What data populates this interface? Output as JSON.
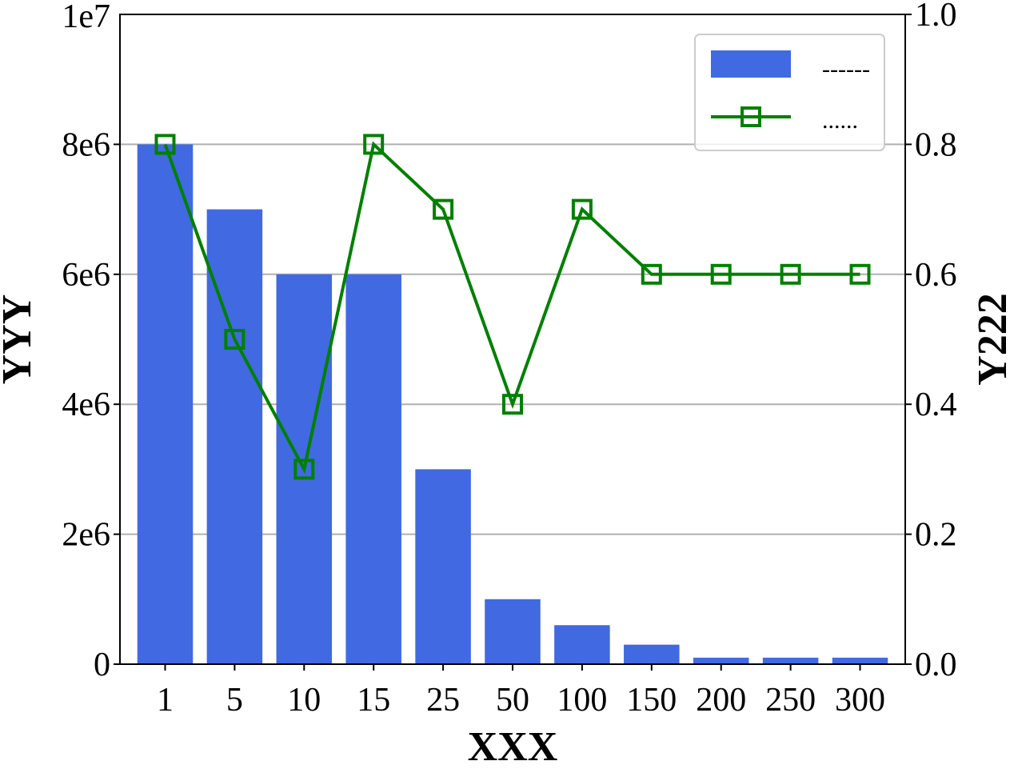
{
  "chart_data": {
    "type": "bar",
    "categories": [
      "1",
      "5",
      "10",
      "15",
      "25",
      "50",
      "100",
      "150",
      "200",
      "250",
      "300"
    ],
    "xlabel": "XXX",
    "ylabel": "YYY",
    "y2label": "Y222",
    "yoffset_label": "1e7",
    "ylim": [
      0,
      10000000
    ],
    "y2lim": [
      0.0,
      1.0
    ],
    "yticks": [
      0,
      2000000,
      4000000,
      6000000,
      8000000
    ],
    "ytick_labels": [
      "0",
      "2e6",
      "4e6",
      "6e6",
      "8e6"
    ],
    "y2ticks": [
      0.0,
      0.2,
      0.4,
      0.6,
      0.8,
      1.0
    ],
    "y2tick_labels": [
      "0.0",
      "0.2",
      "0.4",
      "0.6",
      "0.8",
      "1.0"
    ],
    "grid": "horizontal",
    "legend_position": "top-right",
    "series": [
      {
        "name": "------",
        "type": "bar",
        "axis": "left",
        "color": "#4169E1",
        "values": [
          8000000,
          7000000,
          6000000,
          6000000,
          3000000,
          1000000,
          600000,
          300000,
          100000,
          100000,
          100000
        ]
      },
      {
        "name": "......",
        "type": "line",
        "axis": "right",
        "marker": "square",
        "color": "#008000",
        "values": [
          0.8,
          0.5,
          0.3,
          0.8,
          0.7,
          0.4,
          0.7,
          0.6,
          0.6,
          0.6,
          0.6
        ]
      }
    ]
  }
}
